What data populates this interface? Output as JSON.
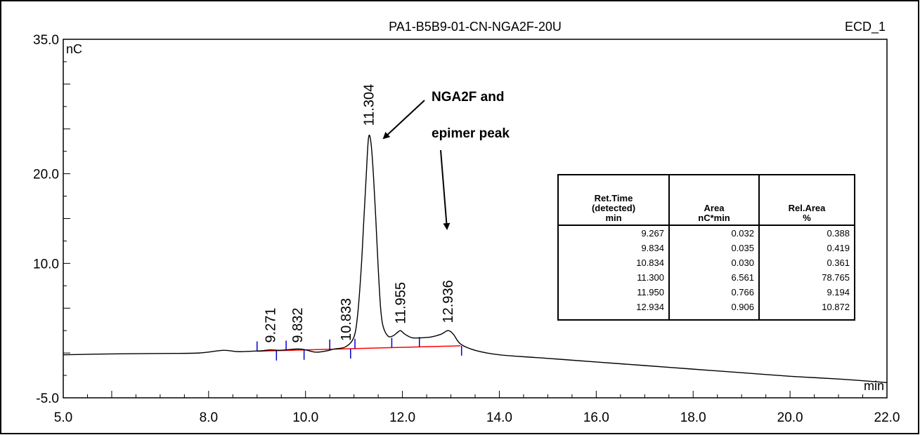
{
  "chart_data": {
    "type": "line",
    "title": "PA1-B5B9-01-CN-NGA2F-20U",
    "channel": "ECD_1",
    "xlabel": "min",
    "ylabel": "nC",
    "xlim": [
      5.0,
      22.0
    ],
    "ylim": [
      -5.0,
      35.0
    ],
    "x_ticks": [
      "5.0",
      "8.0",
      "10.0",
      "12.0",
      "14.0",
      "16.0",
      "18.0",
      "20.0",
      "22.0"
    ],
    "y_ticks": [
      "35.0",
      "20.0",
      "10.0",
      "-5.0"
    ],
    "grid": false,
    "peak_labels": [
      {
        "label": "9.271",
        "x": 9.271,
        "y": 0.2
      },
      {
        "label": "9.832",
        "x": 9.832,
        "y": 0.2
      },
      {
        "label": "10.833",
        "x": 10.833,
        "y": 0.4
      },
      {
        "label": "11.304",
        "x": 11.304,
        "y": 24.4
      },
      {
        "label": "11.955",
        "x": 11.955,
        "y": 2.3
      },
      {
        "label": "12.936",
        "x": 12.936,
        "y": 2.4
      }
    ],
    "series": [
      {
        "x": [
          5.0,
          6.0,
          7.0,
          7.8,
          8.3,
          8.6,
          8.9,
          9.1,
          9.27,
          9.45,
          9.6,
          9.83,
          10.0,
          10.2,
          10.4,
          10.6,
          10.83,
          11.0,
          11.08,
          11.15,
          11.2,
          11.25,
          11.3,
          11.35,
          11.4,
          11.45,
          11.5,
          11.55,
          11.6,
          11.7,
          11.8,
          11.9,
          11.96,
          12.05,
          12.2,
          12.4,
          12.6,
          12.8,
          12.94,
          13.05,
          13.2,
          13.5,
          14.0,
          15.0,
          16.0,
          17.0,
          18.0,
          19.0,
          20.0,
          21.0,
          22.0
        ],
        "y": [
          -0.2,
          -0.1,
          -0.05,
          0.0,
          0.3,
          0.15,
          0.2,
          0.25,
          0.35,
          0.3,
          0.35,
          0.45,
          0.35,
          0.1,
          0.2,
          0.45,
          0.7,
          1.8,
          4.5,
          9.5,
          14.5,
          19.5,
          24.0,
          23.5,
          20.0,
          15.0,
          9.5,
          5.0,
          3.0,
          1.9,
          1.9,
          2.3,
          2.5,
          2.1,
          1.7,
          1.7,
          1.8,
          2.1,
          2.5,
          2.1,
          1.0,
          0.3,
          -0.2,
          -0.6,
          -1.0,
          -1.4,
          -1.8,
          -2.2,
          -2.6,
          -2.9,
          -3.3
        ]
      }
    ],
    "baseline": {
      "x": [
        9.0,
        13.2
      ],
      "y": [
        0.2,
        0.8
      ]
    },
    "baseline_color": "#ff0000",
    "marker_color": "#0000cc",
    "integration_marks": [
      {
        "x": 9.0,
        "side": "up"
      },
      {
        "x": 9.4,
        "side": "down"
      },
      {
        "x": 9.6,
        "side": "up"
      },
      {
        "x": 9.97,
        "side": "down"
      },
      {
        "x": 10.5,
        "side": "up"
      },
      {
        "x": 10.93,
        "side": "down"
      },
      {
        "x": 11.02,
        "side": "up"
      },
      {
        "x": 11.78,
        "side": "up"
      },
      {
        "x": 12.35,
        "side": "up"
      },
      {
        "x": 13.22,
        "side": "down"
      }
    ]
  },
  "annotation": {
    "line1": "NGA2F and",
    "line2": "epimer peak"
  },
  "results_table": {
    "headers": [
      "Ret.Time\n(detected)\nmin",
      "Area\nnC*min",
      "Rel.Area\n%"
    ],
    "rows": [
      [
        "9.267",
        "0.032",
        "0.388"
      ],
      [
        "9.834",
        "0.035",
        "0.419"
      ],
      [
        "10.834",
        "0.030",
        "0.361"
      ],
      [
        "11.300",
        "6.561",
        "78.765"
      ],
      [
        "11.950",
        "0.766",
        "9.194"
      ],
      [
        "12.934",
        "0.906",
        "10.872"
      ]
    ]
  }
}
